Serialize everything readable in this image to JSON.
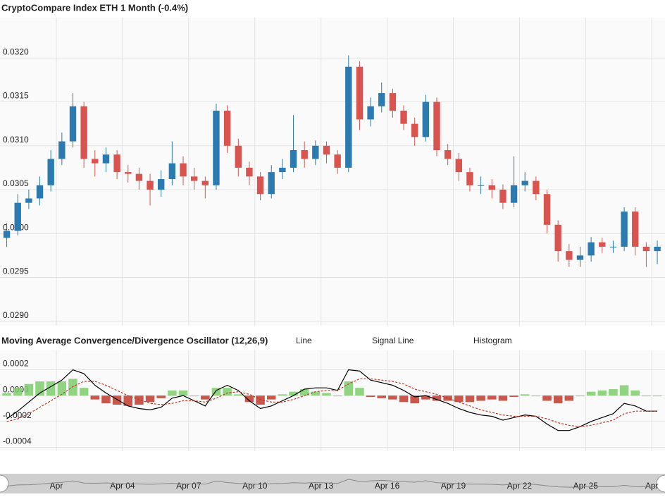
{
  "chart_data": [
    {
      "type": "candlestick",
      "title": "CryptoCompare Index ETH 1 Month (-0.4%)",
      "x": [
        -1.25,
        -0.75,
        -0.25,
        0.25,
        0.75,
        1.25,
        1.75,
        2.25,
        2.75,
        3.25,
        3.75,
        4.25,
        4.75,
        5.25,
        5.75,
        6.25,
        6.75,
        7.25,
        7.75,
        8.25,
        8.75,
        9.25,
        9.75,
        10.25,
        10.75,
        11.25,
        11.75,
        12.25,
        12.75,
        13.25,
        13.75,
        14.25,
        14.75,
        15.25,
        15.75,
        16.25,
        16.75,
        17.25,
        17.75,
        18.25,
        18.75,
        19.25,
        19.75,
        20.25,
        20.75,
        21.25,
        21.75,
        22.25,
        22.75,
        23.25,
        23.75,
        24.25,
        24.75,
        25.25,
        25.75,
        26.25,
        26.75,
        27.25,
        27.75,
        28.25
      ],
      "open": [
        0.02995,
        0.03003,
        0.03035,
        0.0304,
        0.03055,
        0.03085,
        0.03105,
        0.03145,
        0.03085,
        0.0308,
        0.0309,
        0.0307,
        0.03068,
        0.0306,
        0.0305,
        0.03062,
        0.0308,
        0.03065,
        0.0306,
        0.03055,
        0.0314,
        0.031,
        0.03075,
        0.03065,
        0.03045,
        0.0307,
        0.03075,
        0.03095,
        0.03085,
        0.031,
        0.0309,
        0.03075,
        0.0319,
        0.0313,
        0.03145,
        0.0316,
        0.0314,
        0.03125,
        0.0311,
        0.0315,
        0.03095,
        0.03085,
        0.0307,
        0.03055,
        0.03055,
        0.0305,
        0.03035,
        0.03055,
        0.0306,
        0.03045,
        0.0301,
        0.0298,
        0.0297,
        0.02975,
        0.0299,
        0.02985,
        0.02985,
        0.03025,
        0.02985,
        0.0298
      ],
      "high": [
        0.03012,
        0.03045,
        0.0305,
        0.03065,
        0.03095,
        0.03115,
        0.0316,
        0.0315,
        0.03095,
        0.03098,
        0.03095,
        0.03078,
        0.03075,
        0.03068,
        0.03072,
        0.03105,
        0.03088,
        0.03075,
        0.03065,
        0.03148,
        0.03146,
        0.03108,
        0.03082,
        0.0307,
        0.03078,
        0.03085,
        0.03135,
        0.03105,
        0.03106,
        0.03105,
        0.03095,
        0.03203,
        0.03196,
        0.03155,
        0.03172,
        0.03165,
        0.03146,
        0.03132,
        0.03158,
        0.03155,
        0.03102,
        0.03092,
        0.03075,
        0.03065,
        0.03062,
        0.03056,
        0.03088,
        0.0307,
        0.03065,
        0.0305,
        0.03015,
        0.02988,
        0.02985,
        0.02996,
        0.02995,
        0.02992,
        0.0303,
        0.0303,
        0.0299,
        0.02992
      ],
      "low": [
        0.02985,
        0.02998,
        0.03028,
        0.03032,
        0.03048,
        0.03078,
        0.03098,
        0.03075,
        0.03065,
        0.0307,
        0.03062,
        0.03058,
        0.0305,
        0.03032,
        0.03042,
        0.03055,
        0.03055,
        0.0305,
        0.0304,
        0.0305,
        0.03092,
        0.03065,
        0.03055,
        0.03038,
        0.0304,
        0.03062,
        0.0307,
        0.03075,
        0.03078,
        0.0308,
        0.03068,
        0.0307,
        0.03118,
        0.03122,
        0.03138,
        0.03132,
        0.03118,
        0.031,
        0.03105,
        0.03088,
        0.03078,
        0.0306,
        0.03048,
        0.03045,
        0.0304,
        0.03028,
        0.0303,
        0.03048,
        0.03038,
        0.03,
        0.02968,
        0.02962,
        0.02962,
        0.02968,
        0.02978,
        0.02978,
        0.0298,
        0.02975,
        0.02962,
        0.02965
      ],
      "close": [
        0.03003,
        0.03035,
        0.0304,
        0.03055,
        0.03085,
        0.03105,
        0.03145,
        0.03085,
        0.0308,
        0.0309,
        0.0307,
        0.03068,
        0.0306,
        0.0305,
        0.03062,
        0.0308,
        0.03065,
        0.0306,
        0.03055,
        0.0314,
        0.031,
        0.03075,
        0.03065,
        0.03045,
        0.0307,
        0.03075,
        0.03095,
        0.03085,
        0.031,
        0.0309,
        0.03075,
        0.0319,
        0.0313,
        0.03145,
        0.0316,
        0.0314,
        0.03125,
        0.0311,
        0.0315,
        0.03095,
        0.03085,
        0.0307,
        0.03055,
        0.03055,
        0.0305,
        0.03035,
        0.03055,
        0.0306,
        0.03045,
        0.0301,
        0.0298,
        0.0297,
        0.02975,
        0.0299,
        0.02985,
        0.02985,
        0.03025,
        0.02985,
        0.0298,
        0.02985
      ],
      "up_color": "#2b7bb0",
      "down_color": "#d9534f",
      "xlim": [
        -1.556,
        28.6
      ],
      "xticks": [
        {
          "value": 1,
          "label": "Apr"
        },
        {
          "value": 4,
          "label": "Apr 04"
        },
        {
          "value": 7,
          "label": "Apr 07"
        },
        {
          "value": 10,
          "label": "Apr 10"
        },
        {
          "value": 13,
          "label": "Apr 13"
        },
        {
          "value": 16,
          "label": "Apr 16"
        },
        {
          "value": 19,
          "label": "Apr 19"
        },
        {
          "value": 22,
          "label": "Apr 22"
        },
        {
          "value": 25,
          "label": "Apr 25"
        },
        {
          "value": 28,
          "label": "Apr"
        }
      ],
      "ylim": [
        0.02895,
        0.03246
      ],
      "yticks": [
        {
          "value": 0.029,
          "label": "0.0290"
        },
        0.0295,
        {
          "value": 0.03,
          "label": "0.0300"
        },
        0.0305,
        {
          "value": 0.031,
          "label": "0.0310"
        },
        0.0315,
        {
          "value": 0.032,
          "label": "0.0320"
        }
      ],
      "grid": true
    },
    {
      "type": "macd",
      "title": "Moving Average Convergence/Divergence Oscillator (12,26,9)",
      "x": [
        -1.25,
        -0.75,
        -0.25,
        0.25,
        0.75,
        1.25,
        1.75,
        2.25,
        2.75,
        3.25,
        3.75,
        4.25,
        4.75,
        5.25,
        5.75,
        6.25,
        6.75,
        7.25,
        7.75,
        8.25,
        8.75,
        9.25,
        9.75,
        10.25,
        10.75,
        11.25,
        11.75,
        12.25,
        12.75,
        13.25,
        13.75,
        14.25,
        14.75,
        15.25,
        15.75,
        16.25,
        16.75,
        17.25,
        17.75,
        18.25,
        18.75,
        19.25,
        19.75,
        20.25,
        20.75,
        21.25,
        21.75,
        22.25,
        22.75,
        23.25,
        23.75,
        24.25,
        24.75,
        25.25,
        25.75,
        26.25,
        26.75,
        27.25,
        27.75,
        28.25
      ],
      "series": [
        {
          "name": "Line",
          "style": "line",
          "color": "#000000",
          "values": [
            -0.00018,
            -0.00012,
            -5e-05,
            2e-05,
            7e-05,
            0.00012,
            0.0002,
            0.00017,
            8e-05,
            2e-05,
            -3e-05,
            -8e-05,
            -0.0001,
            -0.00011,
            -9e-05,
            -2e-05,
            0,
            -4e-05,
            -8e-05,
            4e-05,
            8e-05,
            4e-05,
            -4e-05,
            -0.0001,
            -8e-05,
            -4e-05,
            0,
            5e-05,
            6e-05,
            6e-05,
            4e-05,
            0.0002,
            0.00019,
            0.00012,
            0.0001,
            8e-05,
            4e-05,
            -1e-05,
            0,
            -3e-05,
            -6e-05,
            -0.0001,
            -0.00013,
            -0.00015,
            -0.00016,
            -0.00019,
            -0.00017,
            -0.00015,
            -0.00016,
            -0.00022,
            -0.00027,
            -0.00027,
            -0.00024,
            -0.0002,
            -0.00017,
            -0.00014,
            -6e-05,
            -8e-05,
            -0.00012,
            -0.00012
          ]
        },
        {
          "name": "Signal Line",
          "style": "dashed",
          "color": "#c0392b",
          "values": [
            -0.0002,
            -0.00018,
            -0.00014,
            -9e-05,
            -4e-05,
            1e-05,
            7e-05,
            0.00011,
            0.00011,
            8e-05,
            4e-05,
            0,
            -3e-05,
            -6e-05,
            -7e-05,
            -6e-05,
            -4e-05,
            -4e-05,
            -5e-05,
            -2e-05,
            2e-05,
            3e-05,
            1e-05,
            -3e-05,
            -5e-05,
            -5e-05,
            -3e-05,
            0,
            3e-05,
            4e-05,
            4e-05,
            9e-05,
            0.00013,
            0.00013,
            0.00012,
            0.00011,
            9e-05,
            5e-05,
            3e-05,
            1e-05,
            -2e-05,
            -5e-05,
            -8e-05,
            -0.00011,
            -0.00013,
            -0.00015,
            -0.00016,
            -0.00016,
            -0.00016,
            -0.00018,
            -0.00021,
            -0.00023,
            -0.00024,
            -0.00023,
            -0.00021,
            -0.00019,
            -0.00014,
            -0.00012,
            -0.00012,
            -0.00012
          ]
        },
        {
          "name": "Histogram",
          "style": "histogram",
          "color": "#7ccc6c",
          "negative_color": "#c0392b",
          "values": [
            2e-05,
            6e-05,
            9e-05,
            0.00011,
            0.00011,
            0.00011,
            0.00013,
            6e-05,
            -3e-05,
            -6e-05,
            -7e-05,
            -8e-05,
            -7e-05,
            -5e-05,
            -2e-05,
            4e-05,
            4e-05,
            0,
            -3e-05,
            6e-05,
            6e-05,
            1e-05,
            -5e-05,
            -7e-05,
            -3e-05,
            1e-05,
            3e-05,
            5e-05,
            3e-05,
            2e-05,
            0,
            0.00011,
            6e-05,
            -1e-05,
            -2e-05,
            -3e-05,
            -5e-05,
            -6e-05,
            -3e-05,
            -4e-05,
            -4e-05,
            -5e-05,
            -5e-05,
            -4e-05,
            -3e-05,
            -4e-05,
            -1e-05,
            1e-05,
            0,
            -4e-05,
            -6e-05,
            -4e-05,
            0,
            3e-05,
            4e-05,
            5e-05,
            8e-05,
            4e-05,
            0,
            0
          ]
        }
      ],
      "xlim": [
        -1.556,
        28.6
      ],
      "ylim": [
        -0.00043,
        0.00035
      ],
      "yticks": [
        -0.0004,
        -0.0002,
        {
          "value": 0,
          "label": "0.0000"
        },
        0.0002
      ],
      "grid": true
    }
  ]
}
